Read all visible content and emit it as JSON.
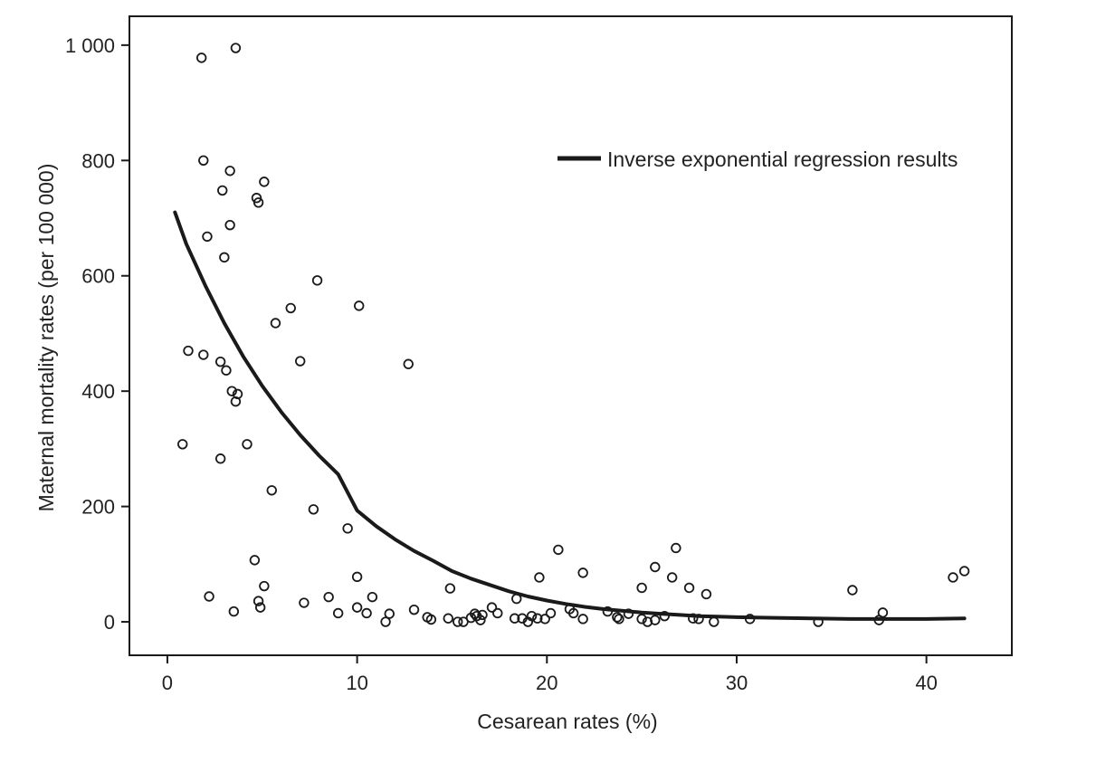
{
  "chart_data": {
    "type": "scatter",
    "xlabel": "Cesarean rates (%)",
    "ylabel": "Maternal mortality rates (per 100 000)",
    "xlim": [
      -2,
      44.5
    ],
    "ylim": [
      -58,
      1050
    ],
    "xticks": [
      0,
      10,
      20,
      30,
      40
    ],
    "xtick_labels": [
      "0",
      "10",
      "20",
      "30",
      "40"
    ],
    "yticks": [
      0,
      200,
      400,
      600,
      800,
      1000
    ],
    "ytick_labels": [
      "0",
      "200",
      "400",
      "600",
      "800",
      "1 000"
    ],
    "grid": false,
    "legend": {
      "placement": "top-right",
      "entries": [
        "Inverse exponential regression results"
      ]
    },
    "colors": {
      "ink": "#1a1a1a",
      "background": "#ffffff"
    },
    "points": [
      [
        1.8,
        978
      ],
      [
        3.6,
        995
      ],
      [
        1.9,
        800
      ],
      [
        3.3,
        782
      ],
      [
        5.1,
        763
      ],
      [
        2.9,
        748
      ],
      [
        4.7,
        735
      ],
      [
        4.8,
        727
      ],
      [
        3.3,
        688
      ],
      [
        2.1,
        668
      ],
      [
        3.0,
        632
      ],
      [
        7.9,
        592
      ],
      [
        10.1,
        548
      ],
      [
        6.5,
        544
      ],
      [
        5.7,
        518
      ],
      [
        1.1,
        470
      ],
      [
        1.9,
        463
      ],
      [
        2.8,
        451
      ],
      [
        7.0,
        452
      ],
      [
        12.7,
        447
      ],
      [
        3.1,
        436
      ],
      [
        3.4,
        400
      ],
      [
        3.7,
        395
      ],
      [
        3.6,
        382
      ],
      [
        0.8,
        308
      ],
      [
        4.2,
        308
      ],
      [
        2.8,
        283
      ],
      [
        5.5,
        228
      ],
      [
        7.7,
        195
      ],
      [
        9.5,
        162
      ],
      [
        4.6,
        107
      ],
      [
        10.0,
        78
      ],
      [
        5.1,
        62
      ],
      [
        14.9,
        58
      ],
      [
        2.2,
        44
      ],
      [
        4.8,
        36
      ],
      [
        7.2,
        33
      ],
      [
        8.5,
        43
      ],
      [
        10.8,
        43
      ],
      [
        4.9,
        25
      ],
      [
        10.0,
        25
      ],
      [
        3.5,
        18
      ],
      [
        9.0,
        15
      ],
      [
        10.5,
        15
      ],
      [
        11.7,
        14
      ],
      [
        11.5,
        0
      ],
      [
        13.0,
        21
      ],
      [
        13.7,
        8
      ],
      [
        13.9,
        4
      ],
      [
        14.8,
        6
      ],
      [
        15.3,
        0
      ],
      [
        15.6,
        0
      ],
      [
        16.0,
        7
      ],
      [
        16.2,
        14
      ],
      [
        16.3,
        10
      ],
      [
        16.5,
        3
      ],
      [
        16.6,
        12
      ],
      [
        17.1,
        25
      ],
      [
        17.4,
        15
      ],
      [
        18.3,
        6
      ],
      [
        18.4,
        40
      ],
      [
        18.7,
        6
      ],
      [
        19.0,
        0
      ],
      [
        19.2,
        10
      ],
      [
        19.5,
        6
      ],
      [
        19.6,
        77
      ],
      [
        19.9,
        5
      ],
      [
        20.2,
        15
      ],
      [
        20.6,
        125
      ],
      [
        21.2,
        22
      ],
      [
        21.4,
        15
      ],
      [
        21.9,
        85
      ],
      [
        21.9,
        5
      ],
      [
        23.2,
        18
      ],
      [
        23.7,
        8
      ],
      [
        23.8,
        5
      ],
      [
        24.3,
        14
      ],
      [
        25.0,
        59
      ],
      [
        25.0,
        5
      ],
      [
        25.3,
        0
      ],
      [
        25.7,
        95
      ],
      [
        25.7,
        3
      ],
      [
        26.2,
        10
      ],
      [
        26.6,
        77
      ],
      [
        26.8,
        128
      ],
      [
        27.5,
        59
      ],
      [
        27.7,
        6
      ],
      [
        28.0,
        5
      ],
      [
        28.4,
        48
      ],
      [
        28.8,
        0
      ],
      [
        30.7,
        5
      ],
      [
        34.3,
        0
      ],
      [
        36.1,
        55
      ],
      [
        37.5,
        3
      ],
      [
        37.7,
        16
      ],
      [
        41.4,
        77
      ],
      [
        42.0,
        88
      ]
    ],
    "series": [
      {
        "name": "Inverse exponential regression results",
        "curve": [
          [
            0.4,
            710
          ],
          [
            1,
            655
          ],
          [
            2,
            583
          ],
          [
            3,
            518
          ],
          [
            4,
            460
          ],
          [
            5,
            409
          ],
          [
            6,
            364
          ],
          [
            7,
            324
          ],
          [
            8,
            288
          ],
          [
            9,
            256
          ],
          [
            10,
            193
          ],
          [
            11,
            166
          ],
          [
            12,
            143
          ],
          [
            13,
            123
          ],
          [
            14,
            106
          ],
          [
            15,
            88
          ],
          [
            16,
            75
          ],
          [
            17,
            64
          ],
          [
            18,
            53
          ],
          [
            19,
            44
          ],
          [
            20,
            37
          ],
          [
            21,
            31
          ],
          [
            22,
            26
          ],
          [
            23,
            22
          ],
          [
            24,
            19
          ],
          [
            25,
            16
          ],
          [
            26,
            14
          ],
          [
            27,
            12
          ],
          [
            28,
            10
          ],
          [
            29,
            9
          ],
          [
            30,
            8
          ],
          [
            32,
            7
          ],
          [
            34,
            6
          ],
          [
            36,
            5
          ],
          [
            38,
            5
          ],
          [
            40,
            5
          ],
          [
            42,
            6
          ]
        ]
      }
    ]
  }
}
